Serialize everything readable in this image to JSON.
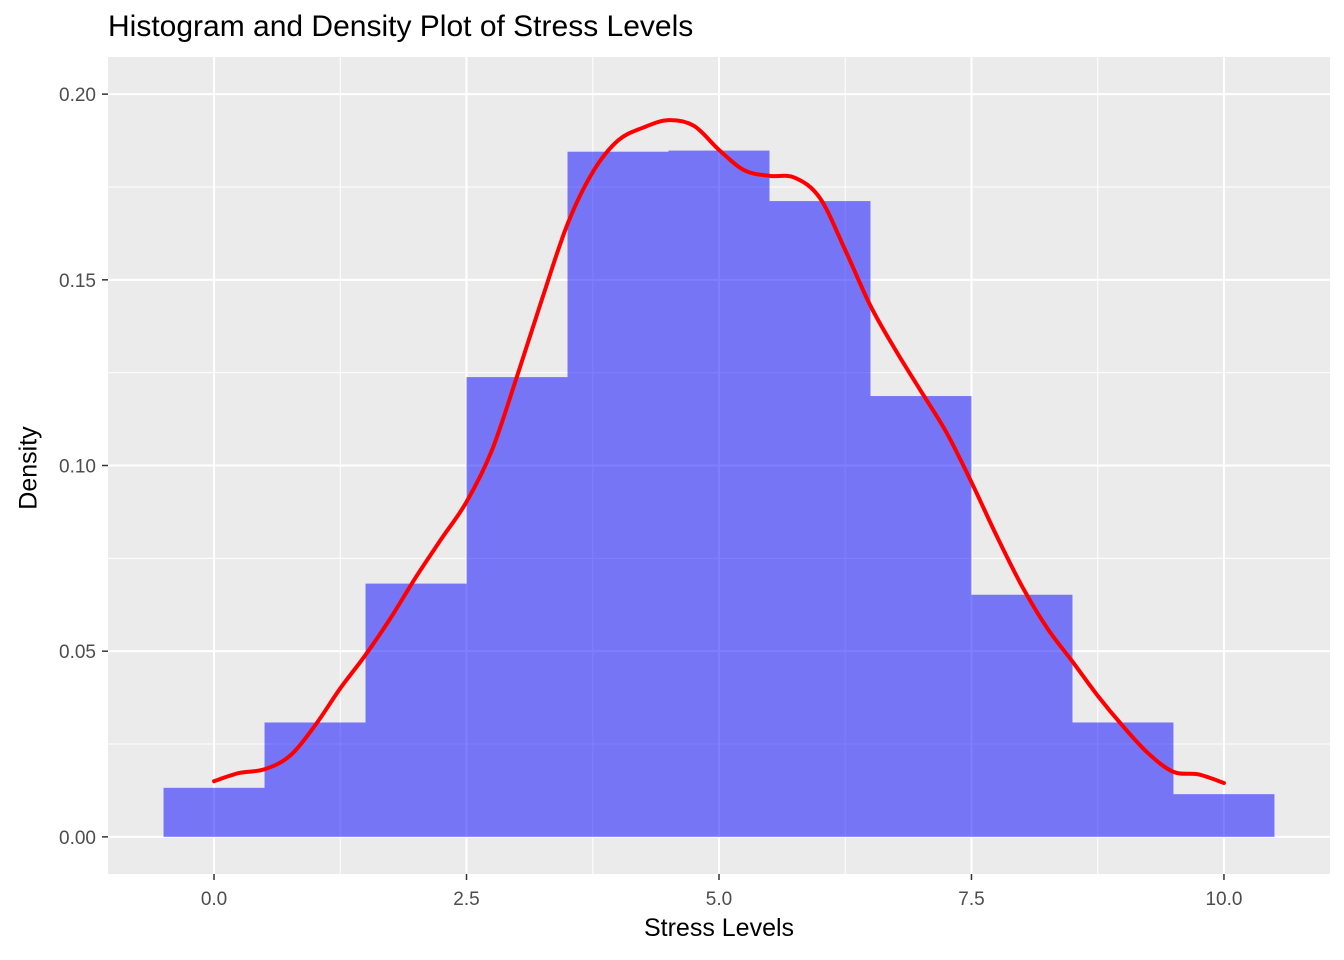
{
  "chart_data": {
    "type": "bar",
    "title": "Histogram and Density Plot of Stress Levels",
    "xlabel": "Stress Levels",
    "ylabel": "Density",
    "xlim": [
      -0.5,
      10.5
    ],
    "ylim": [
      0,
      0.2
    ],
    "x_ticks": [
      "0.0",
      "2.5",
      "5.0",
      "7.5",
      "10.0"
    ],
    "x_tick_values": [
      0,
      2.5,
      5,
      7.5,
      10
    ],
    "y_ticks": [
      "0.00",
      "0.05",
      "0.10",
      "0.15",
      "0.20"
    ],
    "y_tick_values": [
      0,
      0.05,
      0.1,
      0.15,
      0.2
    ],
    "grid": true,
    "histogram": {
      "bin_width": 1,
      "bins": [
        {
          "x0": -0.5,
          "x1": 0.5,
          "density": 0.0132
        },
        {
          "x0": 0.5,
          "x1": 1.5,
          "density": 0.0308
        },
        {
          "x0": 1.5,
          "x1": 2.5,
          "density": 0.0682
        },
        {
          "x0": 2.5,
          "x1": 3.5,
          "density": 0.1238
        },
        {
          "x0": 3.5,
          "x1": 4.5,
          "density": 0.1845
        },
        {
          "x0": 4.5,
          "x1": 5.5,
          "density": 0.1848
        },
        {
          "x0": 5.5,
          "x1": 6.5,
          "density": 0.1712
        },
        {
          "x0": 6.5,
          "x1": 7.5,
          "density": 0.1187
        },
        {
          "x0": 7.5,
          "x1": 8.5,
          "density": 0.0652
        },
        {
          "x0": 8.5,
          "x1": 9.5,
          "density": 0.0308
        },
        {
          "x0": 9.5,
          "x1": 10.5,
          "density": 0.0115
        }
      ],
      "fill": "#0000ff",
      "opacity": 0.5
    },
    "density_curve": {
      "color": "#ff0000",
      "x": [
        0,
        0.25,
        0.5,
        0.75,
        1.0,
        1.25,
        1.5,
        1.75,
        2.0,
        2.25,
        2.5,
        2.75,
        3.0,
        3.25,
        3.5,
        3.75,
        4.0,
        4.25,
        4.5,
        4.75,
        5.0,
        5.25,
        5.5,
        5.75,
        6.0,
        6.25,
        6.5,
        6.75,
        7.0,
        7.25,
        7.5,
        7.75,
        8.0,
        8.25,
        8.5,
        8.75,
        9.0,
        9.25,
        9.5,
        9.75,
        10.0
      ],
      "y": [
        0.015,
        0.0172,
        0.0182,
        0.0218,
        0.03,
        0.04,
        0.049,
        0.059,
        0.07,
        0.0802,
        0.0902,
        0.104,
        0.124,
        0.145,
        0.165,
        0.179,
        0.1875,
        0.191,
        0.193,
        0.1915,
        0.185,
        0.1795,
        0.178,
        0.1775,
        0.172,
        0.158,
        0.143,
        0.131,
        0.12,
        0.109,
        0.0955,
        0.081,
        0.0675,
        0.0562,
        0.0472,
        0.038,
        0.0298,
        0.0225,
        0.0175,
        0.0168,
        0.0145
      ]
    }
  }
}
